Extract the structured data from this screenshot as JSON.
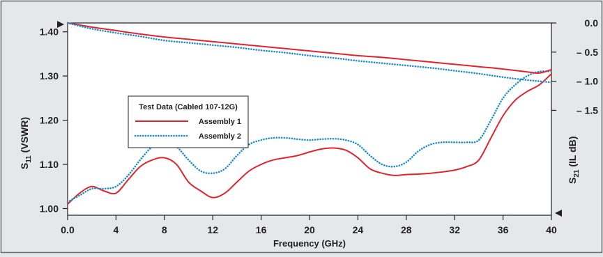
{
  "chart_data": {
    "type": "line",
    "xlabel": "Frequency (GHz)",
    "xlim": [
      0,
      40
    ],
    "x_ticks": [
      0,
      4,
      8,
      12,
      16,
      20,
      24,
      28,
      32,
      36,
      40
    ],
    "x_tick_labels": [
      "0.0",
      "4",
      "8",
      "12",
      "16",
      "20",
      "24",
      "28",
      "32",
      "36",
      "40"
    ],
    "left_axis": {
      "label_main": "S",
      "label_sub": "11",
      "label_tail": " (VSWR)",
      "ylim": [
        0.985,
        1.42
      ],
      "ticks": [
        1.0,
        1.1,
        1.2,
        1.3,
        1.4
      ],
      "tick_labels": [
        "1.00",
        "1.10",
        "1.20",
        "1.30",
        "1.40"
      ]
    },
    "right_axis": {
      "label_main": "S",
      "label_sub": "21",
      "label_tail": " (IL dB)",
      "ylim": [
        -3.3,
        0.0
      ],
      "ticks": [
        0.0,
        -0.5,
        -1.0,
        -1.5
      ],
      "tick_labels": [
        "0.0",
        "– 0.5",
        "– 1.0",
        "– 1.5"
      ]
    },
    "legend": {
      "title": "Test Data (Cabled 107-12G)",
      "position": "middle-left",
      "entries": [
        "Assembly 1",
        "Assembly 2"
      ]
    },
    "series": [
      {
        "name": "Assembly 1",
        "quantity": "VSWR",
        "axis": "left",
        "color": "#e0242e",
        "style": "solid",
        "x": [
          0,
          1,
          2,
          3,
          4,
          5,
          6,
          7,
          8,
          9,
          10,
          11,
          12,
          13,
          14,
          15,
          16,
          17,
          18,
          19,
          20,
          21,
          22,
          23,
          24,
          25,
          26,
          27,
          28,
          29,
          30,
          31,
          32,
          33,
          34,
          35,
          36,
          37,
          38,
          39,
          40
        ],
        "y": [
          1.01,
          1.035,
          1.05,
          1.04,
          1.035,
          1.065,
          1.095,
          1.11,
          1.115,
          1.1,
          1.06,
          1.04,
          1.025,
          1.035,
          1.06,
          1.085,
          1.1,
          1.11,
          1.115,
          1.12,
          1.128,
          1.135,
          1.137,
          1.132,
          1.115,
          1.09,
          1.08,
          1.075,
          1.077,
          1.078,
          1.08,
          1.083,
          1.087,
          1.095,
          1.11,
          1.16,
          1.21,
          1.245,
          1.265,
          1.28,
          1.305
        ]
      },
      {
        "name": "Assembly 2",
        "quantity": "VSWR",
        "axis": "left",
        "color": "#1f8ecf",
        "style": "dotted",
        "x": [
          0,
          1,
          2,
          3,
          4,
          5,
          6,
          7,
          8,
          9,
          10,
          11,
          12,
          13,
          14,
          15,
          16,
          17,
          18,
          19,
          20,
          21,
          22,
          23,
          24,
          25,
          26,
          27,
          28,
          29,
          30,
          31,
          32,
          33,
          34,
          35,
          36,
          37,
          38,
          39,
          40
        ],
        "y": [
          1.015,
          1.03,
          1.045,
          1.045,
          1.05,
          1.075,
          1.11,
          1.14,
          1.15,
          1.14,
          1.11,
          1.085,
          1.08,
          1.09,
          1.12,
          1.145,
          1.155,
          1.16,
          1.16,
          1.157,
          1.155,
          1.157,
          1.158,
          1.155,
          1.145,
          1.12,
          1.1,
          1.095,
          1.105,
          1.13,
          1.145,
          1.15,
          1.15,
          1.15,
          1.155,
          1.2,
          1.25,
          1.28,
          1.3,
          1.31,
          1.31
        ]
      },
      {
        "name": "Assembly 1",
        "quantity": "IL dB",
        "axis": "right",
        "color": "#e0242e",
        "style": "solid",
        "x": [
          0,
          2,
          4,
          6,
          8,
          10,
          12,
          14,
          16,
          18,
          20,
          22,
          24,
          26,
          28,
          30,
          32,
          34,
          36,
          38,
          39,
          40
        ],
        "y": [
          0.0,
          -0.07,
          -0.13,
          -0.19,
          -0.24,
          -0.28,
          -0.32,
          -0.36,
          -0.4,
          -0.44,
          -0.48,
          -0.52,
          -0.56,
          -0.59,
          -0.63,
          -0.67,
          -0.71,
          -0.75,
          -0.79,
          -0.84,
          -0.86,
          -0.8
        ]
      },
      {
        "name": "Assembly 2",
        "quantity": "IL dB",
        "axis": "right",
        "color": "#1f8ecf",
        "style": "dotted",
        "x": [
          0,
          2,
          4,
          6,
          8,
          10,
          12,
          14,
          16,
          18,
          20,
          22,
          24,
          26,
          28,
          30,
          32,
          34,
          36,
          38,
          40
        ],
        "y": [
          0.0,
          -0.1,
          -0.17,
          -0.23,
          -0.3,
          -0.34,
          -0.38,
          -0.42,
          -0.47,
          -0.51,
          -0.56,
          -0.6,
          -0.65,
          -0.69,
          -0.73,
          -0.77,
          -0.82,
          -0.87,
          -0.93,
          -0.98,
          -1.02
        ]
      }
    ]
  }
}
